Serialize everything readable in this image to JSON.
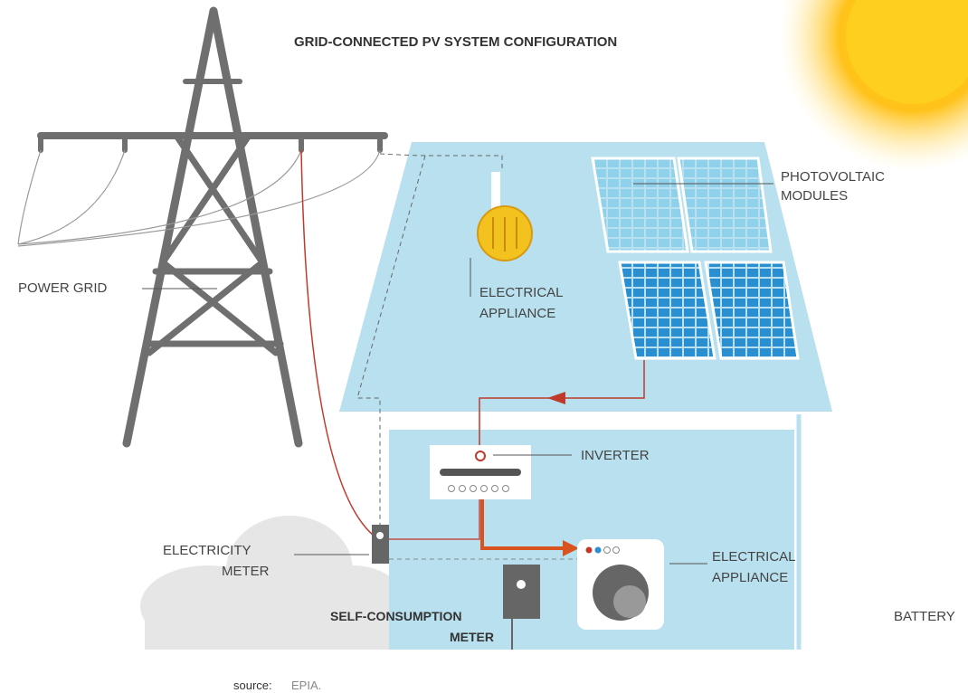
{
  "title": "GRID-CONNECTED PV SYSTEM CONFIGURATION",
  "labels": {
    "power_grid": [
      "POWER GRID"
    ],
    "pv_modules": [
      "PHOTOVOLTAIC",
      "MODULES"
    ],
    "appliance_lamp": [
      "ELECTRICAL",
      "APPLIANCE"
    ],
    "inverter": [
      "INVERTER"
    ],
    "electricity_meter": [
      "ELECTRICITY",
      "METER"
    ],
    "self_consumption_meter": [
      "SELF-CONSUMPTION",
      "METER"
    ],
    "appliance_washer": [
      "ELECTRICAL",
      "APPLIANCE"
    ],
    "battery": [
      "BATTERY"
    ]
  },
  "source": {
    "label": "source:",
    "value": "EPIA."
  }
}
